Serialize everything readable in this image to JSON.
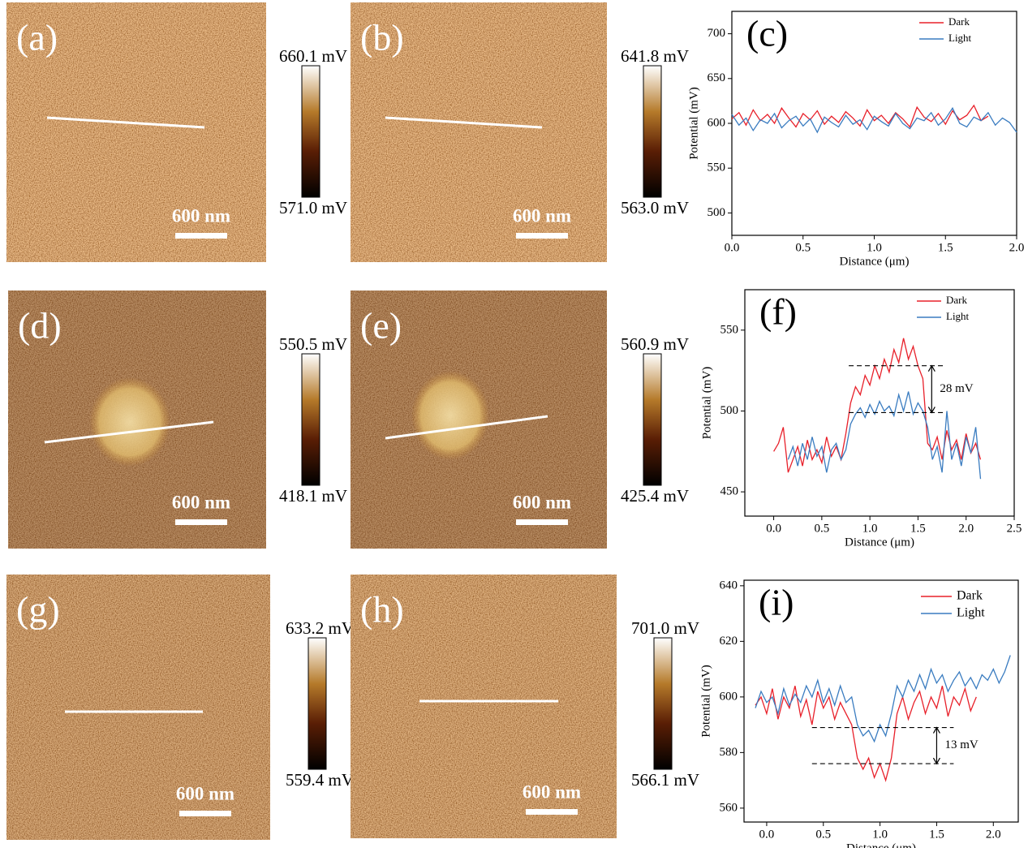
{
  "panels": [
    {
      "label": "(a)",
      "scale_bar": "600 nm",
      "colorbar_max": "660.1 mV",
      "colorbar_min": "571.0 mV"
    },
    {
      "label": "(b)",
      "scale_bar": "600 nm",
      "colorbar_max": "641.8 mV",
      "colorbar_min": "563.0 mV"
    },
    {
      "label": "(d)",
      "scale_bar": "600 nm",
      "colorbar_max": "550.5 mV",
      "colorbar_min": "418.1 mV"
    },
    {
      "label": "(e)",
      "scale_bar": "600 nm",
      "colorbar_max": "560.9 mV",
      "colorbar_min": "425.4 mV"
    },
    {
      "label": "(g)",
      "scale_bar": "600 nm",
      "colorbar_max": "633.2 mV",
      "colorbar_min": "559.4 mV"
    },
    {
      "label": "(h)",
      "scale_bar": "600 nm",
      "colorbar_max": "701.0 mV",
      "colorbar_min": "566.1 mV"
    }
  ],
  "chart_data": [
    {
      "type": "line",
      "label": "(c)",
      "x_label": "Distance (μm)",
      "y_label": "Potential (mV)",
      "x": [
        0,
        0.05,
        0.1,
        0.15,
        0.2,
        0.25,
        0.3,
        0.35,
        0.4,
        0.45,
        0.5,
        0.55,
        0.6,
        0.65,
        0.7,
        0.75,
        0.8,
        0.85,
        0.9,
        0.95,
        1.0,
        1.05,
        1.1,
        1.15,
        1.2,
        1.25,
        1.3,
        1.35,
        1.4,
        1.45,
        1.5,
        1.55,
        1.6,
        1.65,
        1.7,
        1.75,
        1.8,
        1.85,
        1.9,
        1.95,
        2.0
      ],
      "series": [
        {
          "name": "Dark",
          "color": "#e8202a",
          "values": [
            605,
            612,
            598,
            615,
            603,
            610,
            600,
            617,
            606,
            596,
            611,
            604,
            614,
            599,
            608,
            601,
            613,
            606,
            597,
            615,
            603,
            609,
            600,
            612,
            605,
            596,
            618,
            607,
            602,
            611,
            599,
            614,
            604,
            609,
            620,
            603,
            608,
            null,
            null,
            null,
            null
          ]
        },
        {
          "name": "Light",
          "color": "#3a7cc0",
          "values": [
            610,
            598,
            606,
            592,
            604,
            600,
            611,
            595,
            603,
            608,
            597,
            605,
            590,
            607,
            601,
            596,
            609,
            599,
            604,
            593,
            608,
            602,
            597,
            611,
            600,
            594,
            606,
            603,
            612,
            598,
            605,
            617,
            600,
            596,
            607,
            603,
            612,
            598,
            606,
            601,
            590
          ]
        }
      ],
      "xlim": [
        0,
        2
      ],
      "xticks": [
        {
          "value": 0,
          "label": "0.0"
        },
        {
          "value": 0.5,
          "label": "0.5"
        },
        {
          "value": 1,
          "label": "1.0"
        },
        {
          "value": 1.5,
          "label": "1.5"
        },
        {
          "value": 2,
          "label": "2.0"
        }
      ],
      "ylim": [
        475,
        725
      ],
      "yticks": [
        500,
        550,
        600,
        650,
        700
      ],
      "legend": "upper right"
    },
    {
      "type": "line",
      "label": "(f)",
      "x_label": "Distance (μm)",
      "y_label": "Potential (mV)",
      "x": [
        0,
        0.05,
        0.1,
        0.15,
        0.2,
        0.25,
        0.3,
        0.35,
        0.4,
        0.45,
        0.5,
        0.55,
        0.6,
        0.65,
        0.7,
        0.75,
        0.8,
        0.85,
        0.9,
        0.95,
        1.0,
        1.05,
        1.1,
        1.15,
        1.2,
        1.25,
        1.3,
        1.35,
        1.4,
        1.45,
        1.5,
        1.55,
        1.6,
        1.65,
        1.7,
        1.75,
        1.8,
        1.85,
        1.9,
        1.95,
        2.0,
        2.05,
        2.1,
        2.15
      ],
      "series": [
        {
          "name": "Dark",
          "color": "#e8202a",
          "values": [
            475,
            480,
            490,
            462,
            470,
            478,
            466,
            482,
            470,
            476,
            468,
            484,
            472,
            478,
            470,
            486,
            505,
            515,
            510,
            522,
            516,
            528,
            520,
            532,
            524,
            538,
            530,
            545,
            532,
            540,
            528,
            520,
            480,
            476,
            484,
            470,
            488,
            476,
            482,
            470,
            486,
            474,
            480,
            470
          ]
        },
        {
          "name": "Light",
          "color": "#3a7cc0",
          "values": [
            null,
            null,
            null,
            470,
            478,
            466,
            480,
            470,
            484,
            472,
            478,
            462,
            476,
            480,
            470,
            476,
            492,
            498,
            502,
            496,
            504,
            498,
            506,
            500,
            503,
            497,
            510,
            500,
            512,
            498,
            505,
            500,
            490,
            470,
            478,
            462,
            500,
            470,
            480,
            466,
            484,
            474,
            490,
            458
          ]
        }
      ],
      "xlim": [
        -0.3,
        2.5
      ],
      "xticks": [
        {
          "value": 0,
          "label": "0.0"
        },
        {
          "value": 0.5,
          "label": "0.5"
        },
        {
          "value": 1,
          "label": "1.0"
        },
        {
          "value": 1.5,
          "label": "1.5"
        },
        {
          "value": 2,
          "label": "2.0"
        },
        {
          "value": 2.5,
          "label": "2.5"
        }
      ],
      "ylim": [
        435,
        575
      ],
      "yticks": [
        450,
        500,
        550
      ],
      "legend": "upper right",
      "reference_lines": [
        {
          "y": 528,
          "x": [
            0.78,
            1.76
          ]
        },
        {
          "y": 499,
          "x": [
            0.78,
            1.76
          ]
        }
      ],
      "difference_label": "28 mV"
    },
    {
      "type": "line",
      "label": "(i)",
      "x_label": "Distance (μm)",
      "y_label": "Potential (mV)",
      "x": [
        -0.1,
        -0.05,
        0,
        0.05,
        0.1,
        0.15,
        0.2,
        0.25,
        0.3,
        0.35,
        0.4,
        0.45,
        0.5,
        0.55,
        0.6,
        0.65,
        0.7,
        0.75,
        0.8,
        0.85,
        0.9,
        0.95,
        1.0,
        1.05,
        1.1,
        1.15,
        1.2,
        1.25,
        1.3,
        1.35,
        1.4,
        1.45,
        1.5,
        1.55,
        1.6,
        1.65,
        1.7,
        1.75,
        1.8,
        1.85,
        1.9,
        1.95,
        2.0,
        2.05,
        2.1,
        2.15
      ],
      "series": [
        {
          "name": "Dark",
          "color": "#e8202a",
          "values": [
            597,
            600,
            594,
            603,
            592,
            600,
            596,
            604,
            593,
            599,
            590,
            602,
            596,
            600,
            592,
            598,
            594,
            590,
            578,
            574,
            578,
            571,
            576,
            570,
            578,
            594,
            600,
            592,
            598,
            602,
            594,
            600,
            596,
            604,
            593,
            600,
            597,
            603,
            595,
            600,
            null,
            null,
            null,
            null,
            null,
            null
          ]
        },
        {
          "name": "Light",
          "color": "#3a7cc0",
          "values": [
            596,
            602,
            598,
            600,
            594,
            603,
            597,
            601,
            598,
            604,
            600,
            606,
            598,
            603,
            597,
            604,
            598,
            600,
            590,
            586,
            588,
            584,
            590,
            586,
            594,
            604,
            600,
            606,
            602,
            608,
            603,
            610,
            605,
            608,
            602,
            606,
            609,
            604,
            607,
            603,
            608,
            606,
            610,
            605,
            609,
            615
          ]
        }
      ],
      "xlim": [
        -0.2,
        2.22
      ],
      "xticks": [
        {
          "value": 0,
          "label": "0.0"
        },
        {
          "value": 0.5,
          "label": "0.5"
        },
        {
          "value": 1,
          "label": "1.0"
        },
        {
          "value": 1.5,
          "label": "1.5"
        },
        {
          "value": 2,
          "label": "2.0"
        }
      ],
      "ylim": [
        555,
        642
      ],
      "yticks": [
        560,
        580,
        600,
        620,
        640
      ],
      "legend": "upper right",
      "reference_lines": [
        {
          "y": 589,
          "x": [
            0.4,
            1.65
          ]
        },
        {
          "y": 576,
          "x": [
            0.4,
            1.65
          ]
        }
      ],
      "difference_label": "13 mV"
    }
  ]
}
